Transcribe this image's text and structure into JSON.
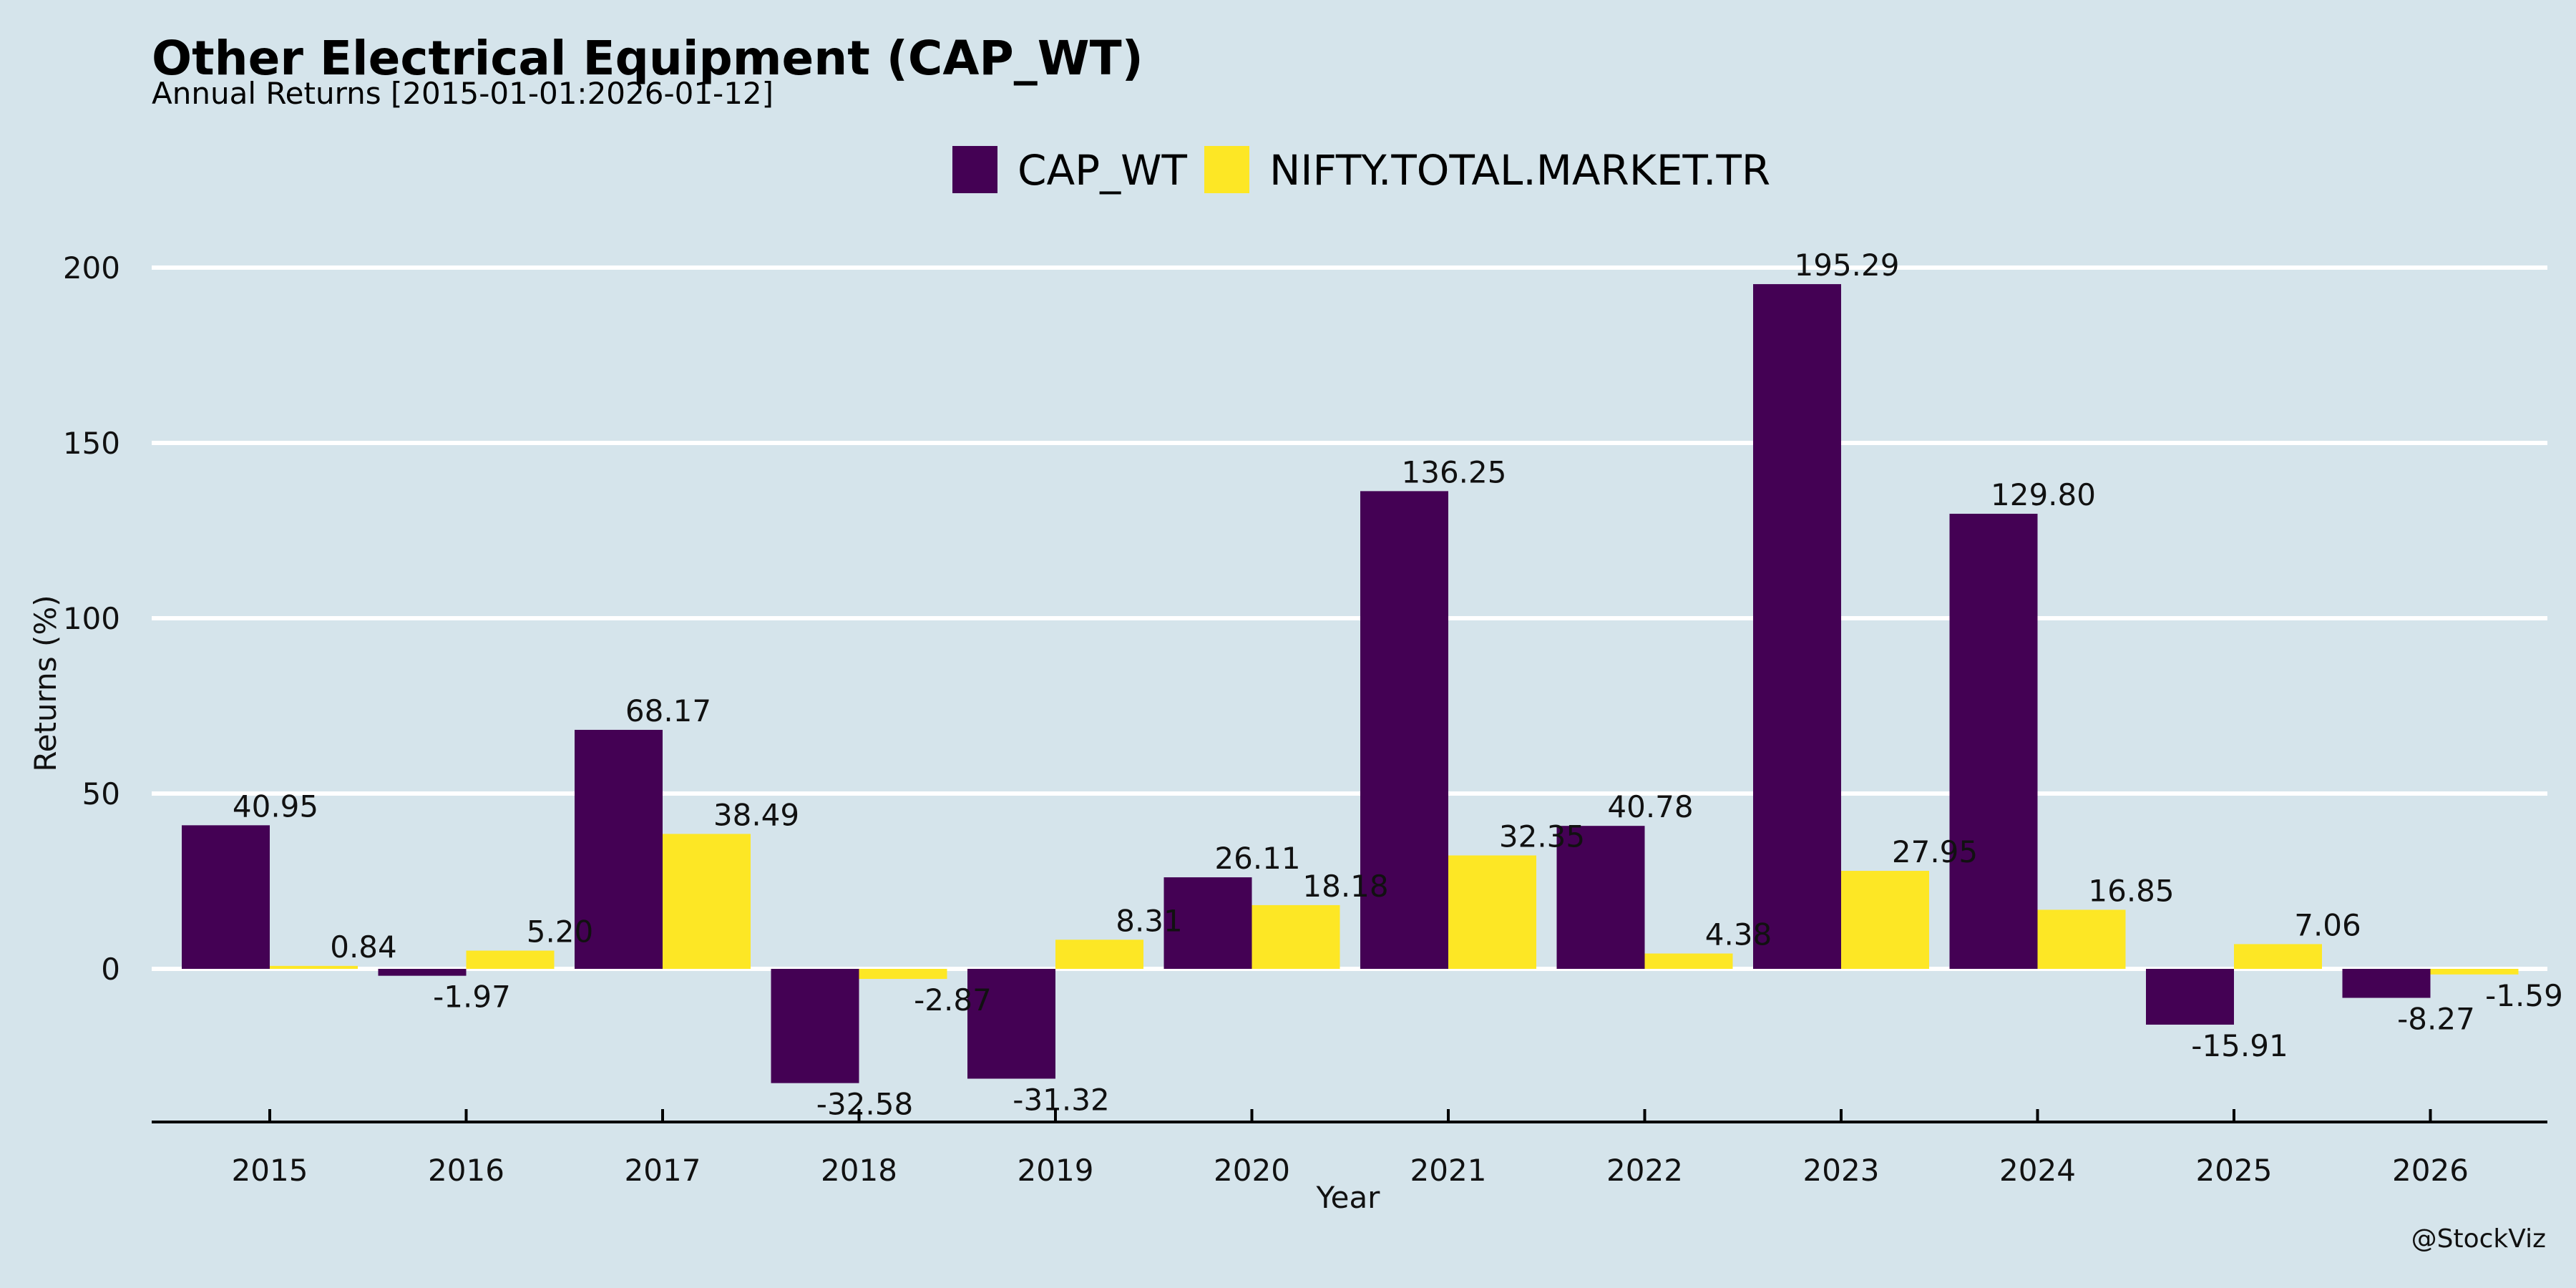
{
  "colors": {
    "background": "#d5e4eb",
    "grid": "#ffffff",
    "axis": "#000000",
    "series": [
      "#440154",
      "#fde725"
    ]
  },
  "credit": "@StockViz",
  "chart_data": {
    "type": "bar",
    "title": "Other Electrical Equipment (CAP_WT)",
    "subtitle": "Annual Returns [2015-01-01:2026-01-12]",
    "xlabel": "Year",
    "ylabel": "Returns (%)",
    "ylim": [
      -43,
      210
    ],
    "yticks": [
      0,
      50,
      100,
      150,
      200
    ],
    "grid": true,
    "legend_position": "top-center",
    "categories": [
      "2015",
      "2016",
      "2017",
      "2018",
      "2019",
      "2020",
      "2021",
      "2022",
      "2023",
      "2024",
      "2025",
      "2026"
    ],
    "series": [
      {
        "name": "CAP_WT",
        "values": [
          40.95,
          -1.97,
          68.17,
          -32.58,
          -31.32,
          26.11,
          136.25,
          40.78,
          195.29,
          129.8,
          -15.91,
          -8.27
        ],
        "labels": [
          "40.95",
          "-1.97",
          "68.17",
          "-32.58",
          "-31.32",
          "26.11",
          "136.25",
          "40.78",
          "195.29",
          "129.80",
          "-15.91",
          "-8.27"
        ]
      },
      {
        "name": "NIFTY.TOTAL.MARKET.TR",
        "values": [
          0.84,
          5.2,
          38.49,
          -2.87,
          8.31,
          18.18,
          32.35,
          4.38,
          27.95,
          16.85,
          7.06,
          -1.59
        ],
        "labels": [
          "0.84",
          "5.20",
          "38.49",
          "-2.87",
          "8.31",
          "18.18",
          "32.35",
          "4.38",
          "27.95",
          "16.85",
          "7.06",
          "-1.59"
        ]
      }
    ]
  }
}
